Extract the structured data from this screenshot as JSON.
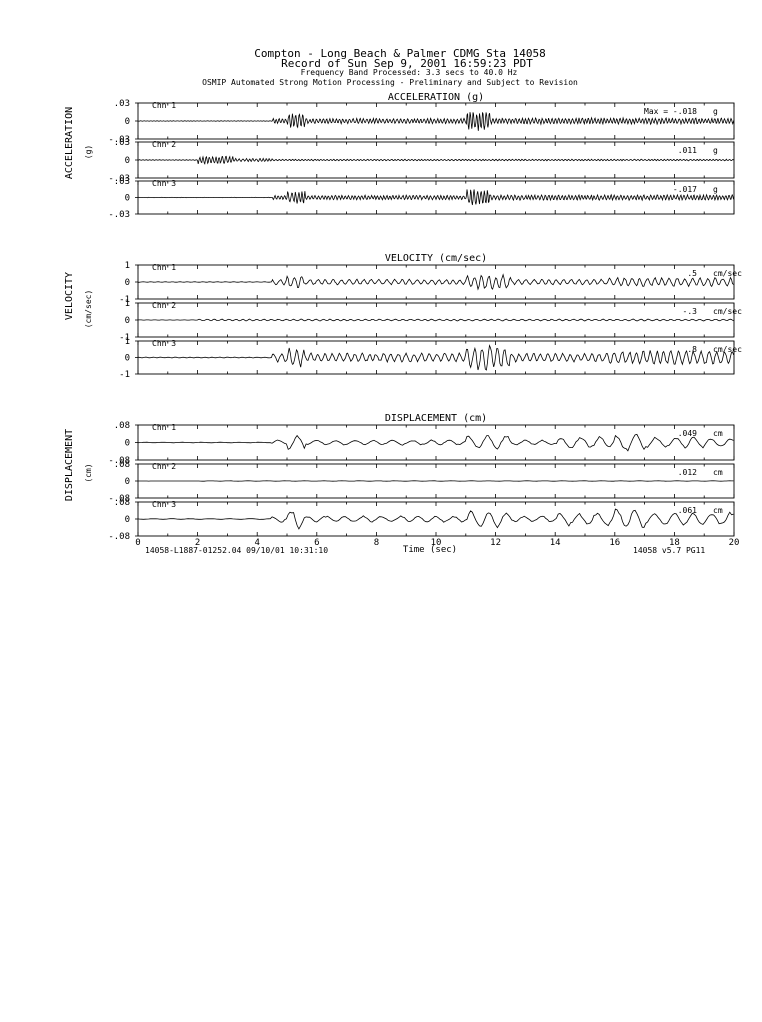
{
  "header": {
    "title_line1": "Compton - Long Beach & Palmer    CDMG Sta 14058",
    "title_line2": "Record of Sun Sep  9, 2001 16:59:23 PDT",
    "title_line3": "Frequency Band Processed: 3.3 secs to 40.0 Hz",
    "title_line4": "OSMIP Automated Strong Motion Processing - Preliminary and Subject to Revision"
  },
  "footer": {
    "left_id": "14058-L1887-01252.04  09/10/01 10:31:10",
    "xlabel": "Time (sec)",
    "right_id": "14058  v5.7  PG11"
  },
  "chart_data": [
    {
      "type": "line",
      "title": "ACCELERATION (g)",
      "ylabel": "ACCELERATION",
      "unit_label": "(g)",
      "x_range": [
        0,
        20
      ],
      "xticks": [
        "0",
        "2",
        "4",
        "6",
        "8",
        "10",
        "12",
        "14",
        "16",
        "18",
        "20"
      ],
      "xlabel": "",
      "channels": [
        {
          "name": "Chn 1",
          "max_label": "Max =  -.018",
          "unit": "g",
          "ylim": [
            -0.03,
            0.03
          ],
          "yticks": [
            ".03",
            "0",
            "-.03"
          ],
          "peak": -0.018
        },
        {
          "name": "Chn 2",
          "max_label": ".011",
          "unit": "g",
          "ylim": [
            -0.03,
            0.03
          ],
          "yticks": [
            ".03",
            "0",
            "-.03"
          ],
          "peak": 0.011
        },
        {
          "name": "Chn 3",
          "max_label": "-.017",
          "unit": "g",
          "ylim": [
            -0.03,
            0.03
          ],
          "yticks": [
            ".03",
            "0",
            "-.03"
          ],
          "peak": -0.017
        }
      ]
    },
    {
      "type": "line",
      "title": "VELOCITY (cm/sec)",
      "ylabel": "VELOCITY",
      "unit_label": "(cm/sec)",
      "x_range": [
        0,
        20
      ],
      "xlabel": "",
      "channels": [
        {
          "name": "Chn 1",
          "max_label": ".5",
          "unit": "cm/sec",
          "ylim": [
            -1,
            1
          ],
          "yticks": [
            "1",
            "0",
            "-1"
          ],
          "peak": 0.5
        },
        {
          "name": "Chn 2",
          "max_label": "-.3",
          "unit": "cm/sec",
          "ylim": [
            -1,
            1
          ],
          "yticks": [
            "1",
            "0",
            "-1"
          ],
          "peak": -0.3
        },
        {
          "name": "Chn 3",
          "max_label": ".8",
          "unit": "cm/sec",
          "ylim": [
            -1,
            1
          ],
          "yticks": [
            "1",
            "0",
            "-1"
          ],
          "peak": 0.8
        }
      ]
    },
    {
      "type": "line",
      "title": "DISPLACEMENT (cm)",
      "ylabel": "DISPLACEMENT",
      "unit_label": "(cm)",
      "x_range": [
        0,
        20
      ],
      "xticks": [
        "0",
        "2",
        "4",
        "6",
        "8",
        "10",
        "12",
        "14",
        "16",
        "18",
        "20"
      ],
      "xlabel": "Time (sec)",
      "channels": [
        {
          "name": "Chn 1",
          "max_label": ".049",
          "unit": "cm",
          "ylim": [
            -0.08,
            0.08
          ],
          "yticks": [
            ".08",
            "0",
            "-.08"
          ],
          "peak": 0.049
        },
        {
          "name": "Chn 2",
          "max_label": ".012",
          "unit": "cm",
          "ylim": [
            -0.08,
            0.08
          ],
          "yticks": [
            ".08",
            "0",
            "-.08"
          ],
          "peak": 0.012
        },
        {
          "name": "Chn 3",
          "max_label": ".061",
          "unit": "cm",
          "ylim": [
            -0.08,
            0.08
          ],
          "yticks": [
            ".08",
            "0",
            "-.08"
          ],
          "peak": 0.061
        }
      ]
    }
  ]
}
